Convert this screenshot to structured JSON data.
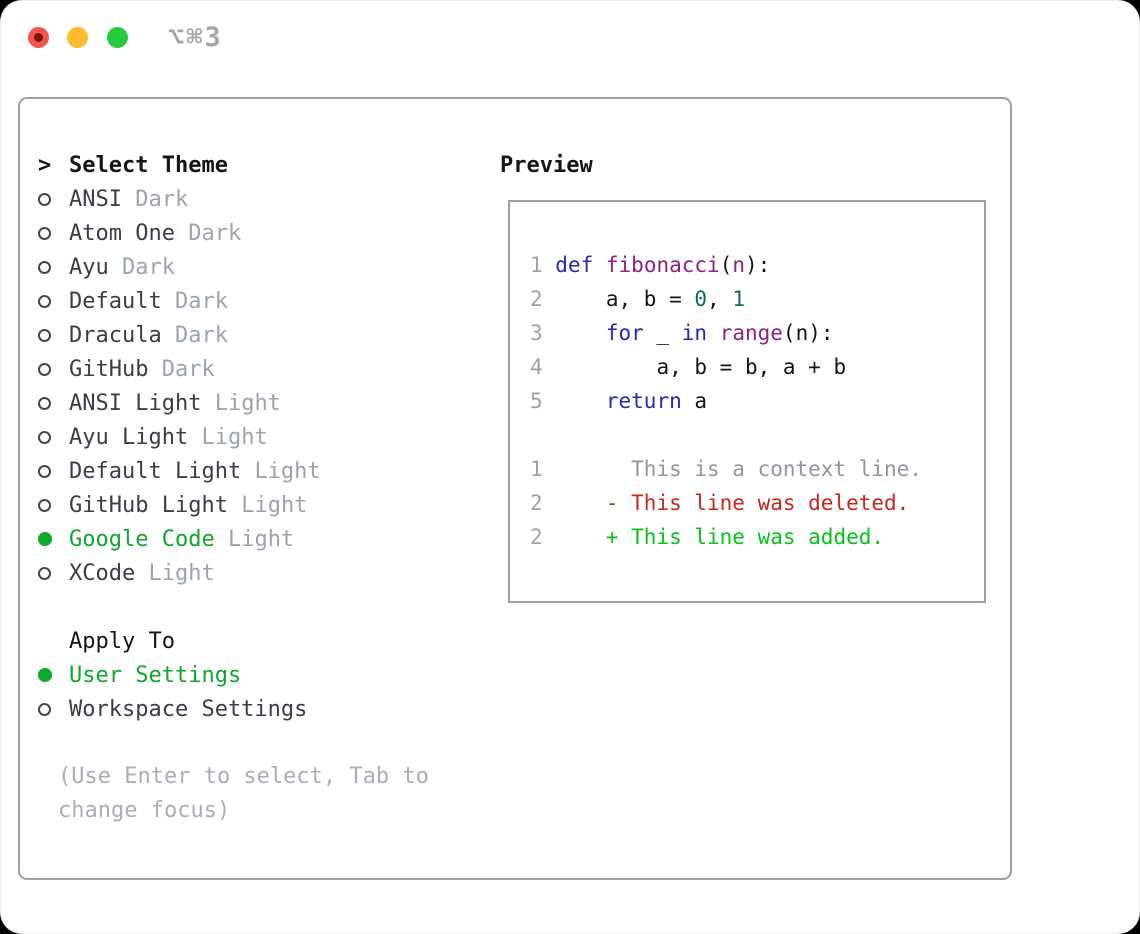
{
  "window": {
    "title": "⌥⌘3",
    "traffic_lights": [
      {
        "name": "close",
        "color": "#f4564f"
      },
      {
        "name": "minimize",
        "color": "#fbbb2d"
      },
      {
        "name": "zoom",
        "color": "#27c93f"
      }
    ]
  },
  "theme_selector": {
    "header": {
      "marker": ">",
      "label": "Select Theme"
    },
    "items": [
      {
        "name": "ANSI",
        "variant": "Dark",
        "selected": false
      },
      {
        "name": "Atom One",
        "variant": "Dark",
        "selected": false
      },
      {
        "name": "Ayu",
        "variant": "Dark",
        "selected": false
      },
      {
        "name": "Default",
        "variant": "Dark",
        "selected": false
      },
      {
        "name": "Dracula",
        "variant": "Dark",
        "selected": false
      },
      {
        "name": "GitHub",
        "variant": "Dark",
        "selected": false
      },
      {
        "name": "ANSI Light",
        "variant": "Light",
        "selected": false
      },
      {
        "name": "Ayu Light",
        "variant": "Light",
        "selected": false
      },
      {
        "name": "Default Light",
        "variant": "Light",
        "selected": false
      },
      {
        "name": "GitHub Light",
        "variant": "Light",
        "selected": false
      },
      {
        "name": "Google Code",
        "variant": "Light",
        "selected": true
      },
      {
        "name": "XCode",
        "variant": "Light",
        "selected": false
      }
    ]
  },
  "apply_to": {
    "header": "Apply To",
    "options": [
      {
        "label": "User Settings",
        "selected": true
      },
      {
        "label": "Workspace Settings",
        "selected": false
      }
    ]
  },
  "help": {
    "text": "(Use Enter to select, Tab to change focus)"
  },
  "preview": {
    "title": "Preview",
    "code_lines": [
      [
        {
          "text": "1 ",
          "style": "ln"
        },
        {
          "text": "def",
          "style": "kw"
        },
        {
          "text": " ",
          "style": "plain"
        },
        {
          "text": "fibonacci",
          "style": "fn"
        },
        {
          "text": "(",
          "style": "plain"
        },
        {
          "text": "n",
          "style": "fn"
        },
        {
          "text": "):",
          "style": "plain"
        }
      ],
      [
        {
          "text": "2",
          "style": "ln"
        },
        {
          "text": "     a, b = ",
          "style": "plain"
        },
        {
          "text": "0",
          "style": "num"
        },
        {
          "text": ", ",
          "style": "plain"
        },
        {
          "text": "1",
          "style": "num"
        }
      ],
      [
        {
          "text": "3",
          "style": "ln"
        },
        {
          "text": "     ",
          "style": "plain"
        },
        {
          "text": "for",
          "style": "kw"
        },
        {
          "text": " _ ",
          "style": "plain"
        },
        {
          "text": "in",
          "style": "kw"
        },
        {
          "text": " ",
          "style": "plain"
        },
        {
          "text": "range",
          "style": "fn"
        },
        {
          "text": "(n):",
          "style": "plain"
        }
      ],
      [
        {
          "text": "4",
          "style": "ln"
        },
        {
          "text": "         a, b = b, a + b",
          "style": "plain"
        }
      ],
      [
        {
          "text": "5",
          "style": "ln"
        },
        {
          "text": "     ",
          "style": "plain"
        },
        {
          "text": "return",
          "style": "kw"
        },
        {
          "text": " a",
          "style": "plain"
        }
      ],
      [],
      [
        {
          "text": "1",
          "style": "ln"
        },
        {
          "text": "       This is a context line.",
          "style": "ctx"
        }
      ],
      [
        {
          "text": "2",
          "style": "ln"
        },
        {
          "text": "     ",
          "style": "plain"
        },
        {
          "text": "- This line was deleted.",
          "style": "del"
        }
      ],
      [
        {
          "text": "2",
          "style": "ln"
        },
        {
          "text": "     ",
          "style": "plain"
        },
        {
          "text": "+ This line was added.",
          "style": "add"
        }
      ]
    ]
  },
  "colors": {
    "selected_green": "#0cab2d",
    "keyword_blue": "#2828b8",
    "function_purple": "#8d2089",
    "number_teal": "#0b6b6b",
    "line_number_gray": "#9aa4b1",
    "context_gray": "#90979f",
    "deleted_red": "#c9271a",
    "added_green": "#06c318",
    "variant_gray": "#9aa5b3",
    "panel_border": "#9aa2ad",
    "help_gray": "#a7afba",
    "title_gray": "#a4a4a9"
  }
}
